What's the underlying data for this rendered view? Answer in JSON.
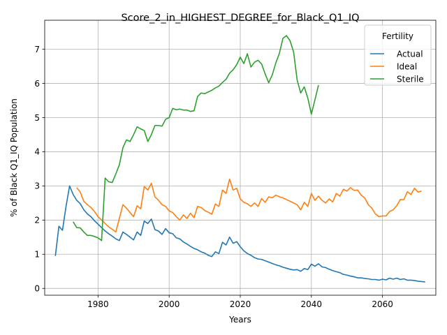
{
  "chart_data": {
    "type": "line",
    "title": "Score_2_in_HIGHEST_DEGREE_for_Black_Q1_IQ",
    "xlabel": "Years",
    "ylabel": "% of Black Q1_IQ Population",
    "xlim": [
      1965,
      2075
    ],
    "ylim": [
      -0.2,
      7.85
    ],
    "xticks": [
      1980,
      2000,
      2020,
      2040,
      2060
    ],
    "yticks": [
      0,
      1,
      2,
      3,
      4,
      5,
      6,
      7
    ],
    "grid": true,
    "legend": {
      "title": "Fertility",
      "placement": "top-right"
    },
    "series": [
      {
        "name": "Actual",
        "color": "#1f77b4",
        "points": [
          [
            1968,
            0.95
          ],
          [
            1969,
            1.82
          ],
          [
            1970,
            1.7
          ],
          [
            1971,
            2.4
          ],
          [
            1972,
            3.0
          ],
          [
            1973,
            2.75
          ],
          [
            1974,
            2.58
          ],
          [
            1975,
            2.48
          ],
          [
            1976,
            2.3
          ],
          [
            1977,
            2.18
          ],
          [
            1978,
            2.1
          ],
          [
            1979,
            1.98
          ],
          [
            1980,
            1.88
          ],
          [
            1981,
            1.78
          ],
          [
            1982,
            1.68
          ],
          [
            1983,
            1.6
          ],
          [
            1984,
            1.53
          ],
          [
            1985,
            1.45
          ],
          [
            1986,
            1.4
          ],
          [
            1987,
            1.65
          ],
          [
            1988,
            1.58
          ],
          [
            1989,
            1.5
          ],
          [
            1990,
            1.42
          ],
          [
            1991,
            1.65
          ],
          [
            1992,
            1.55
          ],
          [
            1993,
            1.97
          ],
          [
            1994,
            1.9
          ],
          [
            1995,
            2.03
          ],
          [
            1996,
            1.72
          ],
          [
            1997,
            1.68
          ],
          [
            1998,
            1.58
          ],
          [
            1999,
            1.75
          ],
          [
            2000,
            1.63
          ],
          [
            2001,
            1.6
          ],
          [
            2002,
            1.48
          ],
          [
            2003,
            1.45
          ],
          [
            2004,
            1.36
          ],
          [
            2005,
            1.3
          ],
          [
            2006,
            1.23
          ],
          [
            2007,
            1.17
          ],
          [
            2008,
            1.13
          ],
          [
            2009,
            1.07
          ],
          [
            2010,
            1.03
          ],
          [
            2011,
            0.97
          ],
          [
            2012,
            0.93
          ],
          [
            2013,
            1.07
          ],
          [
            2014,
            1.02
          ],
          [
            2015,
            1.35
          ],
          [
            2016,
            1.27
          ],
          [
            2017,
            1.5
          ],
          [
            2018,
            1.32
          ],
          [
            2019,
            1.37
          ],
          [
            2020,
            1.22
          ],
          [
            2021,
            1.1
          ],
          [
            2022,
            1.02
          ],
          [
            2023,
            0.97
          ],
          [
            2024,
            0.9
          ],
          [
            2025,
            0.86
          ],
          [
            2026,
            0.85
          ],
          [
            2027,
            0.81
          ],
          [
            2028,
            0.77
          ],
          [
            2029,
            0.73
          ],
          [
            2030,
            0.69
          ],
          [
            2031,
            0.66
          ],
          [
            2032,
            0.62
          ],
          [
            2033,
            0.59
          ],
          [
            2034,
            0.56
          ],
          [
            2035,
            0.54
          ],
          [
            2036,
            0.55
          ],
          [
            2037,
            0.5
          ],
          [
            2038,
            0.58
          ],
          [
            2039,
            0.55
          ],
          [
            2040,
            0.71
          ],
          [
            2041,
            0.65
          ],
          [
            2042,
            0.72
          ],
          [
            2043,
            0.63
          ],
          [
            2044,
            0.61
          ],
          [
            2045,
            0.56
          ],
          [
            2046,
            0.52
          ],
          [
            2047,
            0.49
          ],
          [
            2048,
            0.46
          ],
          [
            2049,
            0.41
          ],
          [
            2050,
            0.39
          ],
          [
            2051,
            0.36
          ],
          [
            2052,
            0.34
          ],
          [
            2053,
            0.31
          ],
          [
            2054,
            0.31
          ],
          [
            2055,
            0.29
          ],
          [
            2056,
            0.28
          ],
          [
            2057,
            0.26
          ],
          [
            2058,
            0.26
          ],
          [
            2059,
            0.24
          ],
          [
            2060,
            0.27
          ],
          [
            2061,
            0.25
          ],
          [
            2062,
            0.3
          ],
          [
            2063,
            0.27
          ],
          [
            2064,
            0.3
          ],
          [
            2065,
            0.26
          ],
          [
            2066,
            0.28
          ],
          [
            2067,
            0.24
          ],
          [
            2068,
            0.24
          ],
          [
            2069,
            0.23
          ],
          [
            2070,
            0.21
          ],
          [
            2071,
            0.2
          ],
          [
            2072,
            0.19
          ]
        ]
      },
      {
        "name": "Ideal",
        "color": "#ff7f0e",
        "points": [
          [
            1974,
            2.95
          ],
          [
            1975,
            2.82
          ],
          [
            1976,
            2.55
          ],
          [
            1977,
            2.45
          ],
          [
            1978,
            2.37
          ],
          [
            1979,
            2.25
          ],
          [
            1980,
            2.1
          ],
          [
            1981,
            2.0
          ],
          [
            1982,
            1.9
          ],
          [
            1983,
            1.8
          ],
          [
            1984,
            1.73
          ],
          [
            1985,
            1.65
          ],
          [
            1986,
            2.05
          ],
          [
            1987,
            2.45
          ],
          [
            1988,
            2.35
          ],
          [
            1989,
            2.22
          ],
          [
            1990,
            2.1
          ],
          [
            1991,
            2.42
          ],
          [
            1992,
            2.33
          ],
          [
            1993,
            2.98
          ],
          [
            1994,
            2.88
          ],
          [
            1995,
            3.08
          ],
          [
            1996,
            2.68
          ],
          [
            1997,
            2.58
          ],
          [
            1998,
            2.45
          ],
          [
            1999,
            2.4
          ],
          [
            2000,
            2.27
          ],
          [
            2001,
            2.22
          ],
          [
            2002,
            2.1
          ],
          [
            2003,
            2.0
          ],
          [
            2004,
            2.15
          ],
          [
            2005,
            2.05
          ],
          [
            2006,
            2.2
          ],
          [
            2007,
            2.07
          ],
          [
            2008,
            2.4
          ],
          [
            2009,
            2.37
          ],
          [
            2010,
            2.28
          ],
          [
            2011,
            2.23
          ],
          [
            2012,
            2.17
          ],
          [
            2013,
            2.47
          ],
          [
            2014,
            2.4
          ],
          [
            2015,
            2.88
          ],
          [
            2016,
            2.78
          ],
          [
            2017,
            3.2
          ],
          [
            2018,
            2.88
          ],
          [
            2019,
            2.93
          ],
          [
            2020,
            2.62
          ],
          [
            2021,
            2.52
          ],
          [
            2022,
            2.48
          ],
          [
            2023,
            2.4
          ],
          [
            2024,
            2.5
          ],
          [
            2025,
            2.4
          ],
          [
            2026,
            2.63
          ],
          [
            2027,
            2.52
          ],
          [
            2028,
            2.68
          ],
          [
            2029,
            2.65
          ],
          [
            2030,
            2.73
          ],
          [
            2031,
            2.68
          ],
          [
            2032,
            2.65
          ],
          [
            2033,
            2.6
          ],
          [
            2034,
            2.55
          ],
          [
            2035,
            2.5
          ],
          [
            2036,
            2.45
          ],
          [
            2037,
            2.3
          ],
          [
            2038,
            2.52
          ],
          [
            2039,
            2.4
          ],
          [
            2040,
            2.78
          ],
          [
            2041,
            2.58
          ],
          [
            2042,
            2.7
          ],
          [
            2043,
            2.58
          ],
          [
            2044,
            2.5
          ],
          [
            2045,
            2.62
          ],
          [
            2046,
            2.53
          ],
          [
            2047,
            2.78
          ],
          [
            2048,
            2.7
          ],
          [
            2049,
            2.9
          ],
          [
            2050,
            2.85
          ],
          [
            2051,
            2.95
          ],
          [
            2052,
            2.87
          ],
          [
            2053,
            2.88
          ],
          [
            2054,
            2.73
          ],
          [
            2055,
            2.65
          ],
          [
            2056,
            2.45
          ],
          [
            2057,
            2.35
          ],
          [
            2058,
            2.18
          ],
          [
            2059,
            2.1
          ],
          [
            2060,
            2.12
          ],
          [
            2061,
            2.12
          ],
          [
            2062,
            2.25
          ],
          [
            2063,
            2.3
          ],
          [
            2064,
            2.42
          ],
          [
            2065,
            2.6
          ],
          [
            2066,
            2.6
          ],
          [
            2067,
            2.83
          ],
          [
            2068,
            2.75
          ],
          [
            2069,
            2.93
          ],
          [
            2070,
            2.82
          ],
          [
            2071,
            2.85
          ]
        ]
      },
      {
        "name": "Sterile",
        "color": "#2ca02c",
        "points": [
          [
            1973,
            1.95
          ],
          [
            1974,
            1.78
          ],
          [
            1975,
            1.77
          ],
          [
            1976,
            1.65
          ],
          [
            1977,
            1.55
          ],
          [
            1978,
            1.55
          ],
          [
            1979,
            1.52
          ],
          [
            1980,
            1.48
          ],
          [
            1981,
            1.4
          ],
          [
            1982,
            3.23
          ],
          [
            1983,
            3.12
          ],
          [
            1984,
            3.1
          ],
          [
            1985,
            3.35
          ],
          [
            1986,
            3.62
          ],
          [
            1987,
            4.12
          ],
          [
            1988,
            4.35
          ],
          [
            1989,
            4.3
          ],
          [
            1990,
            4.5
          ],
          [
            1991,
            4.73
          ],
          [
            1992,
            4.67
          ],
          [
            1993,
            4.62
          ],
          [
            1994,
            4.3
          ],
          [
            1995,
            4.5
          ],
          [
            1996,
            4.77
          ],
          [
            1997,
            4.77
          ],
          [
            1998,
            4.75
          ],
          [
            1999,
            4.95
          ],
          [
            2000,
            5.0
          ],
          [
            2001,
            5.27
          ],
          [
            2002,
            5.23
          ],
          [
            2003,
            5.25
          ],
          [
            2004,
            5.22
          ],
          [
            2005,
            5.22
          ],
          [
            2006,
            5.18
          ],
          [
            2007,
            5.2
          ],
          [
            2008,
            5.62
          ],
          [
            2009,
            5.72
          ],
          [
            2010,
            5.7
          ],
          [
            2011,
            5.75
          ],
          [
            2012,
            5.8
          ],
          [
            2013,
            5.87
          ],
          [
            2014,
            5.92
          ],
          [
            2015,
            6.03
          ],
          [
            2016,
            6.12
          ],
          [
            2017,
            6.3
          ],
          [
            2018,
            6.4
          ],
          [
            2019,
            6.55
          ],
          [
            2020,
            6.77
          ],
          [
            2021,
            6.58
          ],
          [
            2022,
            6.87
          ],
          [
            2023,
            6.48
          ],
          [
            2024,
            6.62
          ],
          [
            2025,
            6.68
          ],
          [
            2026,
            6.57
          ],
          [
            2027,
            6.28
          ],
          [
            2028,
            6.02
          ],
          [
            2029,
            6.25
          ],
          [
            2030,
            6.6
          ],
          [
            2031,
            6.88
          ],
          [
            2032,
            7.32
          ],
          [
            2033,
            7.4
          ],
          [
            2034,
            7.25
          ],
          [
            2035,
            6.92
          ],
          [
            2036,
            6.1
          ],
          [
            2037,
            5.72
          ],
          [
            2038,
            5.9
          ],
          [
            2039,
            5.57
          ],
          [
            2040,
            5.1
          ],
          [
            2041,
            5.52
          ],
          [
            2042,
            5.95
          ]
        ]
      }
    ]
  }
}
